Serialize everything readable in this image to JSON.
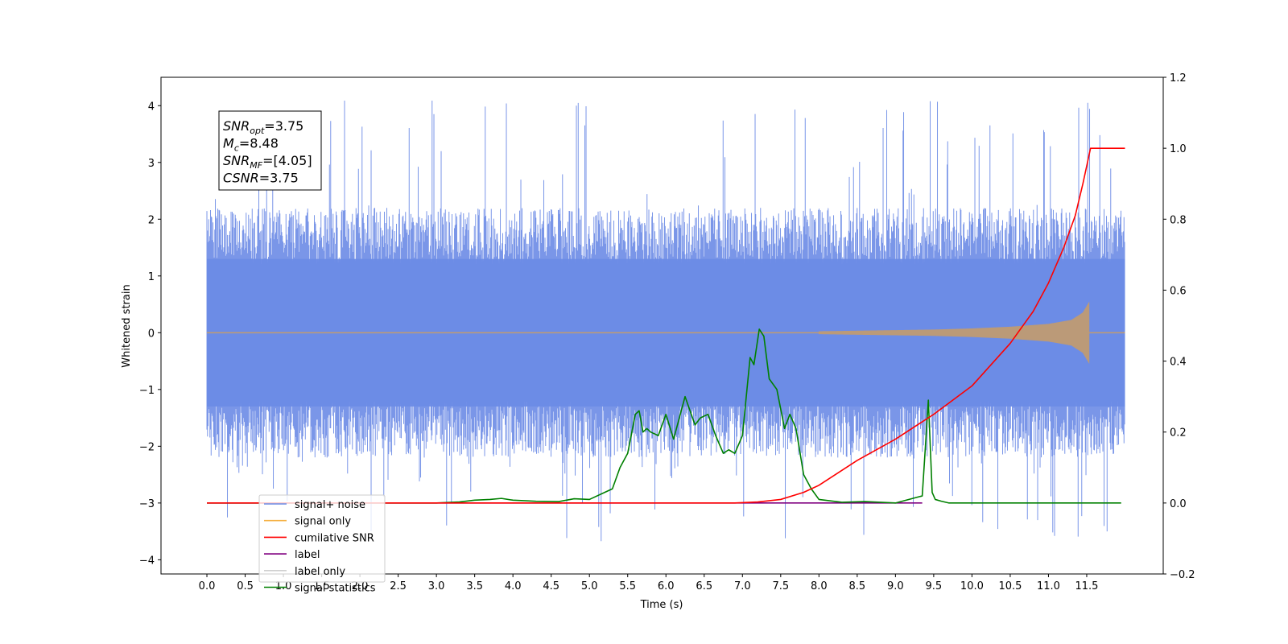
{
  "chart_data": {
    "type": "line",
    "xlabel": "Time (s)",
    "ylabel": "Whitened strain",
    "xlim": [
      -0.6,
      12.5
    ],
    "ylim_left": [
      -4.25,
      4.5
    ],
    "ylim_right": [
      -0.2,
      1.2
    ],
    "x_ticks": [
      0.0,
      0.5,
      1.0,
      1.5,
      2.0,
      2.5,
      3.0,
      3.5,
      4.0,
      4.5,
      5.0,
      5.5,
      6.0,
      6.5,
      7.0,
      7.5,
      8.0,
      8.5,
      9.0,
      9.5,
      10.0,
      10.5,
      11.0,
      11.5
    ],
    "x_tick_labels": [
      "0.0",
      "0.5",
      "1.0",
      "1.5",
      "2.0",
      "2.5",
      "3.0",
      "3.5",
      "4.0",
      "4.5",
      "5.0",
      "5.5",
      "6.0",
      "6.5",
      "7.0",
      "7.5",
      "8.0",
      "8.5",
      "9.0",
      "9.5",
      "10.0",
      "10.5",
      "11.0",
      "11.5"
    ],
    "y_left_ticks": [
      -4,
      -3,
      -2,
      -1,
      0,
      1,
      2,
      3,
      4
    ],
    "y_left_tick_labels": [
      "−4",
      "−3",
      "−2",
      "−1",
      "0",
      "1",
      "2",
      "3",
      "4"
    ],
    "y_right_ticks": [
      -0.2,
      0.0,
      0.2,
      0.4,
      0.6,
      0.8,
      1.0,
      1.2
    ],
    "y_right_tick_labels": [
      "−0.2",
      "0.0",
      "0.2",
      "0.4",
      "0.6",
      "0.8",
      "1.0",
      "1.2"
    ],
    "grid": false,
    "legend_position": "lower-left",
    "annotations": [
      {
        "var": "SNR",
        "sub": "opt",
        "text": "=3.75"
      },
      {
        "var": "M",
        "sub": "c",
        "text": "=8.48"
      },
      {
        "var": "SNR",
        "sub": "MF",
        "text": "=[4.05]"
      },
      {
        "var": "CSNR",
        "sub": "",
        "text": "=3.75"
      }
    ],
    "noise_envelope": {
      "x": [
        0.0,
        12.0
      ],
      "typical_max": 2.2,
      "typical_min": -2.2,
      "peak_max": 4.12,
      "peak_min": -3.72
    },
    "signal_envelope": {
      "axis": "left",
      "x": [
        8.0,
        8.5,
        9.0,
        9.5,
        10.0,
        10.5,
        11.0,
        11.3,
        11.45,
        11.53,
        11.55,
        12.0
      ],
      "amplitude": [
        0.02,
        0.03,
        0.04,
        0.05,
        0.07,
        0.1,
        0.15,
        0.22,
        0.35,
        0.53,
        0.0,
        0.0
      ]
    },
    "series": [
      {
        "name": "cumilative SNR",
        "axis": "right",
        "x": [
          0.0,
          6.9,
          7.2,
          7.5,
          7.8,
          8.0,
          8.5,
          9.0,
          9.5,
          10.0,
          10.5,
          10.8,
          11.0,
          11.2,
          11.35,
          11.45,
          11.55,
          11.6,
          12.0
        ],
        "y": [
          0.0,
          0.0,
          0.003,
          0.01,
          0.03,
          0.05,
          0.12,
          0.18,
          0.25,
          0.33,
          0.45,
          0.54,
          0.62,
          0.72,
          0.81,
          0.9,
          1.0,
          1.0,
          1.0
        ]
      },
      {
        "name": "label",
        "axis": "right",
        "x": [
          0.0,
          9.35
        ],
        "y": [
          0.0,
          0.0
        ]
      },
      {
        "name": "signal statistics",
        "axis": "right",
        "x": [
          0.0,
          3.0,
          3.3,
          3.5,
          3.7,
          3.85,
          4.0,
          4.3,
          4.6,
          4.8,
          5.0,
          5.2,
          5.3,
          5.4,
          5.5,
          5.6,
          5.65,
          5.7,
          5.75,
          5.8,
          5.9,
          6.0,
          6.1,
          6.25,
          6.38,
          6.45,
          6.55,
          6.65,
          6.75,
          6.82,
          6.9,
          7.0,
          7.1,
          7.15,
          7.22,
          7.28,
          7.35,
          7.45,
          7.55,
          7.62,
          7.7,
          7.8,
          7.9,
          8.0,
          8.3,
          8.6,
          9.0,
          9.35,
          9.38,
          9.43,
          9.48,
          9.52,
          9.6,
          9.7,
          10.0,
          10.5,
          11.0,
          11.5,
          11.95
        ],
        "y": [
          0.0,
          0.0,
          0.003,
          0.008,
          0.01,
          0.013,
          0.008,
          0.005,
          0.004,
          0.012,
          0.01,
          0.03,
          0.04,
          0.1,
          0.14,
          0.25,
          0.26,
          0.2,
          0.21,
          0.2,
          0.19,
          0.25,
          0.18,
          0.3,
          0.22,
          0.24,
          0.25,
          0.19,
          0.14,
          0.15,
          0.14,
          0.19,
          0.41,
          0.39,
          0.49,
          0.47,
          0.35,
          0.32,
          0.21,
          0.25,
          0.21,
          0.08,
          0.04,
          0.01,
          0.002,
          0.004,
          0.0,
          0.02,
          0.12,
          0.29,
          0.03,
          0.01,
          0.005,
          0.0,
          0.0,
          0.0,
          0.0,
          0.0,
          0.0
        ]
      }
    ],
    "legend": [
      {
        "name": "signal+ noise",
        "color": "#6b8be6"
      },
      {
        "name": "signal only",
        "color": "#f5b042"
      },
      {
        "name": "cumilative SNR",
        "color": "#ff0000"
      },
      {
        "name": "label",
        "color": "#800080"
      },
      {
        "name": "label only",
        "color": "#cfcfcf"
      },
      {
        "name": "signal statistics",
        "color": "#008000"
      }
    ],
    "colors": {
      "noise": "#6b8be6",
      "signal_overlay": "#bb9a78",
      "cumulative": "#ff0000",
      "label": "#800080",
      "statistics": "#008000"
    }
  }
}
